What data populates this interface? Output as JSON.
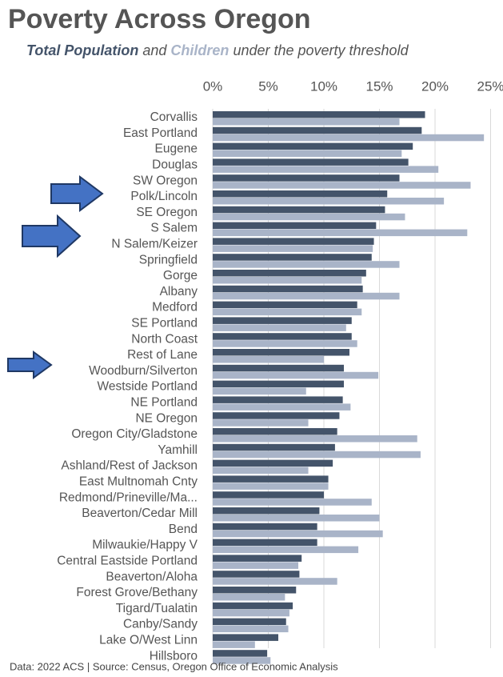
{
  "chart_data": {
    "type": "bar",
    "orientation": "horizontal",
    "title": "Poverty Across Oregon",
    "subtitle_connector": "and",
    "subtitle_tail": "under the poverty threshold",
    "source": "Data: 2022 ACS | Source: Census, Oregon Office of Economic Analysis",
    "categories": [
      "Corvallis",
      "East Portland",
      "Eugene",
      "Douglas",
      "SW Oregon",
      "Polk/Lincoln",
      "SE Oregon",
      "S Salem",
      "N Salem/Keizer",
      "Springfield",
      "Gorge",
      "Albany",
      "Medford",
      "SE Portland",
      "North Coast",
      "Rest of Lane",
      "Woodburn/Silverton",
      "Westside Portland",
      "NE Portland",
      "NE Oregon",
      "Oregon City/Gladstone",
      "Yamhill",
      "Ashland/Rest of Jackson",
      "East Multnomah Cnty",
      "Redmond/Prineville/Ma...",
      "Beaverton/Cedar Mill",
      "Bend",
      "Milwaukie/Happy V",
      "Central Eastside Portland",
      "Beaverton/Aloha",
      "Forest Grove/Bethany",
      "Tigard/Tualatin",
      "Canby/Sandy",
      "Lake O/West Linn",
      "Hillsboro"
    ],
    "series": [
      {
        "name": "Total Population",
        "color": "#44546a",
        "values": [
          19.1,
          18.8,
          18.0,
          17.6,
          16.8,
          15.7,
          15.5,
          14.7,
          14.5,
          14.3,
          13.8,
          13.5,
          13.0,
          12.5,
          12.5,
          12.3,
          11.8,
          11.8,
          11.7,
          11.4,
          11.2,
          11.0,
          10.8,
          10.4,
          10.0,
          9.6,
          9.4,
          9.4,
          8.0,
          7.8,
          7.5,
          7.2,
          6.6,
          5.9,
          4.9
        ]
      },
      {
        "name": "Children",
        "color": "#a9b4c8",
        "values": [
          16.8,
          24.4,
          17.0,
          20.3,
          23.2,
          20.8,
          17.3,
          22.9,
          14.4,
          16.8,
          13.4,
          16.8,
          13.4,
          12.0,
          13.0,
          10.0,
          14.9,
          8.4,
          12.4,
          8.6,
          18.4,
          18.7,
          8.6,
          10.4,
          14.3,
          15.0,
          15.3,
          13.1,
          7.7,
          11.2,
          6.5,
          6.9,
          6.8,
          3.8,
          5.2
        ]
      }
    ],
    "xlim": [
      0,
      25
    ],
    "xticks": [
      {
        "value": 0,
        "label": "0%"
      },
      {
        "value": 5,
        "label": "5%"
      },
      {
        "value": 10,
        "label": "10%"
      },
      {
        "value": 15,
        "label": "15%"
      },
      {
        "value": 20,
        "label": "20%"
      },
      {
        "value": 25,
        "label": "25%"
      }
    ],
    "grid": true
  }
}
